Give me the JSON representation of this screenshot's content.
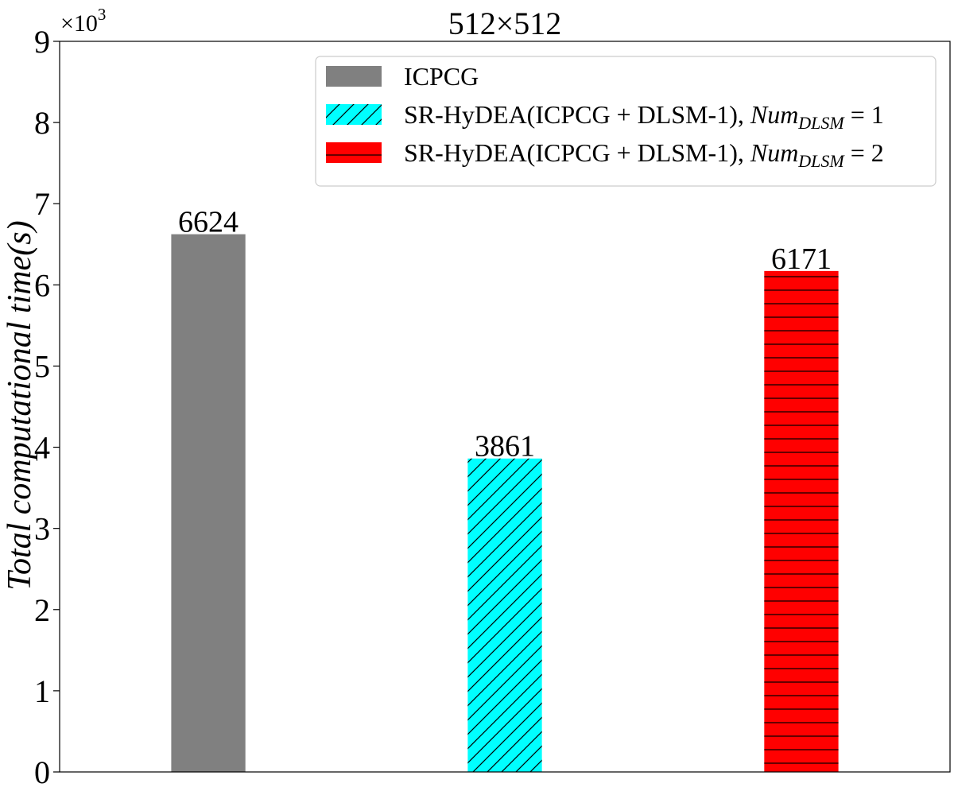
{
  "chart_data": {
    "type": "bar",
    "title": "512×512",
    "ylabel": "Total computational time(s)",
    "xlabel": "",
    "y_multiplier_label": {
      "base": "×10",
      "exp": "3"
    },
    "ylim": [
      0,
      9000
    ],
    "yticks": [
      0,
      1000,
      2000,
      3000,
      4000,
      5000,
      6000,
      7000,
      8000,
      9000
    ],
    "ytick_labels": [
      "0",
      "1",
      "2",
      "3",
      "4",
      "5",
      "6",
      "7",
      "8",
      "9"
    ],
    "grid": false,
    "legend_position": "top-right",
    "series": [
      {
        "name": "ICPCG",
        "legend": {
          "text": "ICPCG"
        },
        "value": 6624,
        "label": "6624",
        "color": "#808080",
        "hatch": "none"
      },
      {
        "name": "SR-HyDEA(ICPCG + DLSM-1), Num_DLSM = 1",
        "legend": {
          "prefix": "SR-HyDEA(ICPCG + DLSM-1), ",
          "var": "Num",
          "sub": "DLSM",
          "eq": " = ",
          "num": "1"
        },
        "value": 3861,
        "label": "3861",
        "color": "#00ffff",
        "hatch": "diagonal"
      },
      {
        "name": "SR-HyDEA(ICPCG + DLSM-1), Num_DLSM = 2",
        "legend": {
          "prefix": "SR-HyDEA(ICPCG + DLSM-1), ",
          "var": "Num",
          "sub": "DLSM",
          "eq": " = ",
          "num": "2"
        },
        "value": 6171,
        "label": "6171",
        "color": "#ff0000",
        "hatch": "horizontal"
      }
    ]
  }
}
